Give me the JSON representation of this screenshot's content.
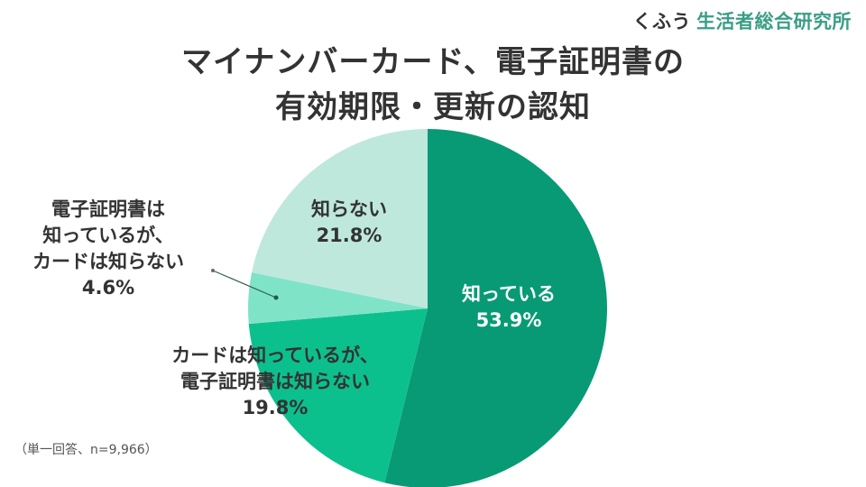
{
  "brand": {
    "prefix": "くふう",
    "name": "生活者総合研究所"
  },
  "title": {
    "line1": "マイナンバーカード、電子証明書の",
    "line2": "有効期限・更新の認知"
  },
  "note": "（単一回答、n=9,966）",
  "colors": {
    "knows": "#079a75",
    "card_only": "#0cc08d",
    "cert_only": "#7fe3c8",
    "not_know": "#bfe8dd",
    "text": "#333333",
    "brand_accent": "#3a9e86"
  },
  "labels": {
    "knows": {
      "line1": "知っている",
      "value": "53.9%"
    },
    "not_know": {
      "line1": "知らない",
      "value": "21.8%"
    },
    "cert_only": {
      "line1": "電子証明書は",
      "line2": "知っているが、",
      "line3": "カードは知らない",
      "value": "4.6%"
    },
    "card_only": {
      "line1": "カードは知っているが、",
      "line2": "電子証明書は知らない",
      "value": "19.8%"
    }
  },
  "chart_data": {
    "type": "pie",
    "title": "マイナンバーカード、電子証明書の有効期限・更新の認知",
    "subtitle": "（単一回答、n=9,966）",
    "categories": [
      "知っている",
      "カードは知っているが、電子証明書は知らない",
      "電子証明書は知っているが、カードは知らない",
      "知らない"
    ],
    "values": [
      53.9,
      19.8,
      4.6,
      21.8
    ],
    "unit": "%",
    "start_angle": "12 o'clock",
    "direction": "clockwise",
    "legend": "none (direct labels)",
    "colors": [
      "#079a75",
      "#0cc08d",
      "#7fe3c8",
      "#bfe8dd"
    ]
  }
}
